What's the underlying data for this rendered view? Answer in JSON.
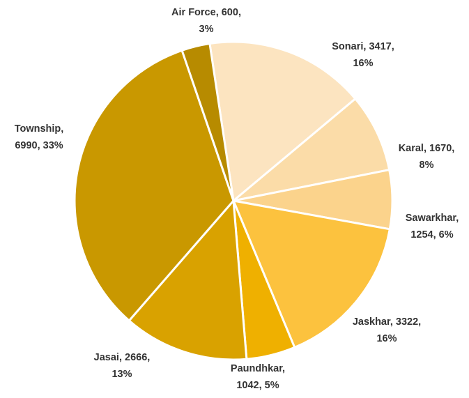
{
  "chart_data": {
    "type": "pie",
    "start_angle_deg": -8.6,
    "direction": "clockwise",
    "legend": "none",
    "slices": [
      {
        "label": "Sonari",
        "value": 3417,
        "percent": "16%",
        "color": "#FCE4C0",
        "text_line1": "Sonari, 3417,",
        "text_line2": "16%"
      },
      {
        "label": "Karal",
        "value": 1670,
        "percent": "8%",
        "color": "#FBDCA8",
        "text_line1": "Karal, 1670,",
        "text_line2": "8%"
      },
      {
        "label": "Sawarkhar",
        "value": 1254,
        "percent": "6%",
        "color": "#FBD38C",
        "text_line1": "Sawarkhar,",
        "text_line2": "1254, 6%"
      },
      {
        "label": "Jaskhar",
        "value": 3322,
        "percent": "16%",
        "color": "#FCC23E",
        "text_line1": "Jaskhar, 3322,",
        "text_line2": "16%"
      },
      {
        "label": "Paundhkar",
        "value": 1042,
        "percent": "5%",
        "color": "#EFB000",
        "text_line1": "Paundhkar,",
        "text_line2": "1042, 5%"
      },
      {
        "label": "Jasai",
        "value": 2666,
        "percent": "13%",
        "color": "#D9A200",
        "text_line1": "Jasai, 2666,",
        "text_line2": "13%"
      },
      {
        "label": "Township",
        "value": 6990,
        "percent": "33%",
        "color": "#C99800",
        "text_line1": "Township,",
        "text_line2": "6990, 33%"
      },
      {
        "label": "Air Force",
        "value": 600,
        "percent": "3%",
        "color": "#B78B00",
        "text_line1": "Air Force, 600,",
        "text_line2": "3%"
      }
    ]
  }
}
